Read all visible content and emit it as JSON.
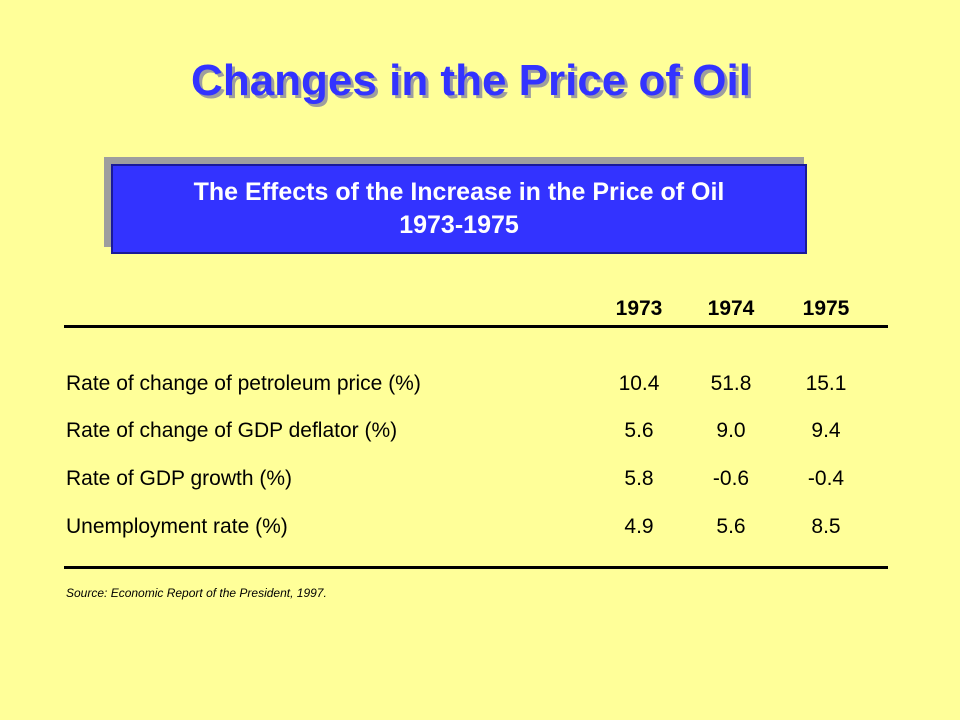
{
  "slide": {
    "title": "Changes in the Price of Oil"
  },
  "subtitle": {
    "line1": "The Effects of the Increase in the Price of Oil",
    "line2": "1973-1975"
  },
  "table": {
    "years": [
      "1973",
      "1974",
      "1975"
    ],
    "rows": [
      {
        "label": "Rate of change of petroleum price (%)",
        "values": [
          "10.4",
          "51.8",
          "15.1"
        ]
      },
      {
        "label": "Rate of change of GDP deflator (%)",
        "values": [
          "5.6",
          "9.0",
          "9.4"
        ]
      },
      {
        "label": "Rate of GDP growth (%)",
        "values": [
          "5.8",
          "-0.6",
          "-0.4"
        ]
      },
      {
        "label": "Unemployment rate (%)",
        "values": [
          "4.9",
          "5.6",
          "8.5"
        ]
      }
    ]
  },
  "source": "Source:  Economic Report of the President, 1997.",
  "colors": {
    "background": "#ffff99",
    "accent": "#3333ff",
    "shadow": "#9e9e9e"
  }
}
